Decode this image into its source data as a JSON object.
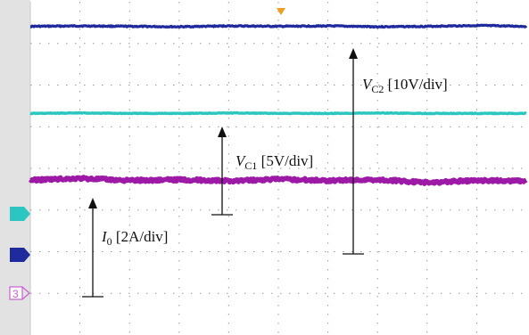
{
  "chart_data": {
    "type": "line",
    "title": "",
    "xlabel": "",
    "ylabel": "",
    "grid": true,
    "grid_divisions": {
      "x": 10,
      "y": 8
    },
    "xlim": [
      0,
      10
    ],
    "ylim": [
      0,
      8
    ],
    "units": "divisions",
    "series": [
      {
        "name": "V_C2",
        "scale": "10V/div",
        "color": "#1f2a9c",
        "x": [
          0,
          1,
          2,
          3,
          4,
          5,
          6,
          7,
          8,
          9,
          10
        ],
        "values": [
          7.41,
          7.42,
          7.41,
          7.4,
          7.42,
          7.41,
          7.42,
          7.4,
          7.41,
          7.43,
          7.41
        ]
      },
      {
        "name": "V_C1",
        "scale": "5V/div",
        "color": "#2cc6c0",
        "x": [
          0,
          1,
          2,
          3,
          4,
          5,
          6,
          7,
          8,
          9,
          10
        ],
        "values": [
          5.32,
          5.33,
          5.32,
          5.32,
          5.33,
          5.32,
          5.32,
          5.33,
          5.32,
          5.32,
          5.32
        ]
      },
      {
        "name": "I_0",
        "scale": "2A/div",
        "color": "#9c1aa5",
        "x": [
          0,
          1,
          2,
          3,
          4,
          5,
          6,
          7,
          8,
          9,
          10
        ],
        "values": [
          3.72,
          3.76,
          3.71,
          3.73,
          3.7,
          3.74,
          3.71,
          3.73,
          3.66,
          3.71,
          3.7
        ]
      }
    ],
    "annotations": [
      {
        "base": "V",
        "sub": "C2",
        "text": " [10V/div]"
      },
      {
        "base": "V",
        "sub": "C1",
        "text": " [5V/div]"
      },
      {
        "base": "I",
        "sub": "0",
        "text": " [2A/div]"
      }
    ],
    "channel_markers": [
      {
        "label": "2",
        "color": "#2cc6c0"
      },
      {
        "label": "1",
        "color": "#1f2a9c"
      },
      {
        "label": "3",
        "color": "#c75fd0"
      }
    ]
  }
}
